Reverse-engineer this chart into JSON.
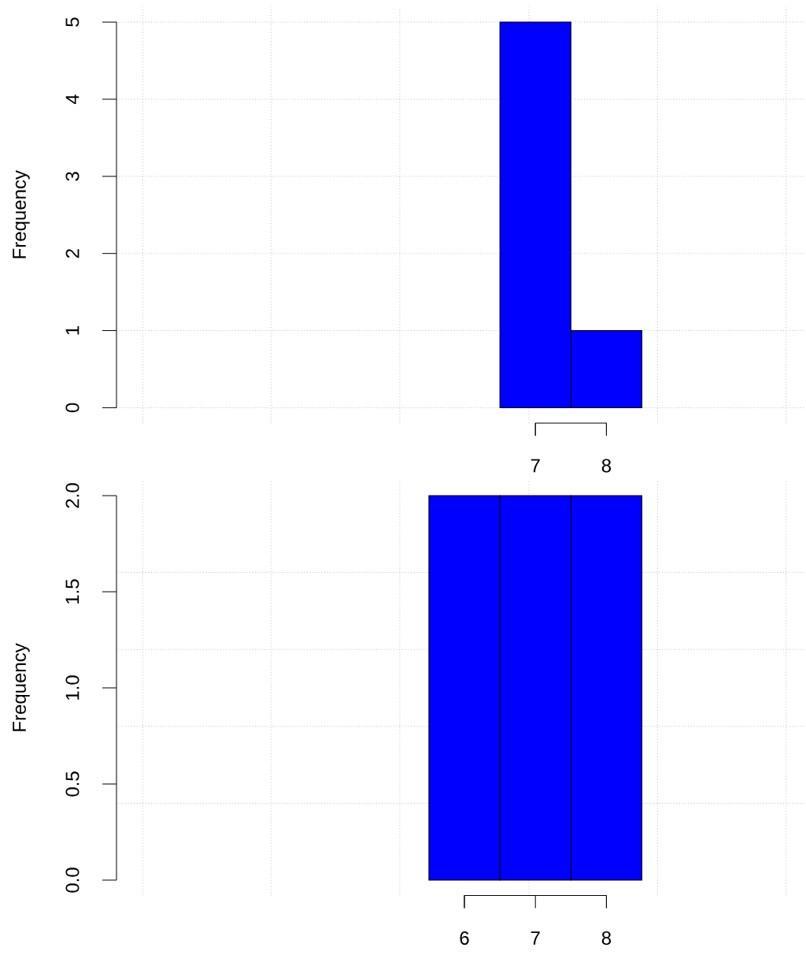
{
  "chart_data": [
    {
      "type": "histogram",
      "ylabel": "Frequency",
      "bins": [
        6.5,
        7.5,
        8.5
      ],
      "values": [
        5,
        1
      ],
      "color": "#0000ff",
      "xlim": [
        1.1,
        10.8
      ],
      "ylim": [
        -0.2,
        5.2
      ],
      "xticks": [
        7,
        8,
        {
          "value": 1.47,
          "label": null
        },
        {
          "value": 3.28,
          "label": null
        },
        {
          "value": 5.09,
          "label": null
        },
        {
          "value": 6.91,
          "label": null
        },
        {
          "value": 8.72,
          "label": null
        },
        {
          "value": 10.53,
          "label": null
        }
      ],
      "yticks": [
        0,
        1,
        2,
        3,
        4,
        5
      ],
      "grid": true
    },
    {
      "type": "histogram",
      "ylabel": "Frequency",
      "bins": [
        5.5,
        6.5,
        7.5,
        8.5
      ],
      "values": [
        2,
        2,
        2
      ],
      "color": "#0000ff",
      "xlim": [
        1.1,
        10.8
      ],
      "ylim": [
        -0.08,
        2.08
      ],
      "xticks": [
        6,
        7,
        8,
        {
          "value": 1.47,
          "label": null
        },
        {
          "value": 3.28,
          "label": null
        },
        {
          "value": 5.09,
          "label": null
        },
        {
          "value": 6.91,
          "label": null
        },
        {
          "value": 8.72,
          "label": null
        },
        {
          "value": 10.53,
          "label": null
        }
      ],
      "yticks": [
        {
          "value": 0,
          "label": "0.0"
        },
        {
          "value": 0.5,
          "label": "0.5"
        },
        {
          "value": 1,
          "label": "1.0"
        },
        {
          "value": 1.5,
          "label": "1.5"
        },
        {
          "value": 2,
          "label": "2.0"
        },
        {
          "value": 0.4,
          "label": null
        },
        {
          "value": 0.8,
          "label": null
        },
        {
          "value": 1.2,
          "label": null
        },
        {
          "value": 1.6,
          "label": null
        }
      ],
      "grid": true
    }
  ]
}
